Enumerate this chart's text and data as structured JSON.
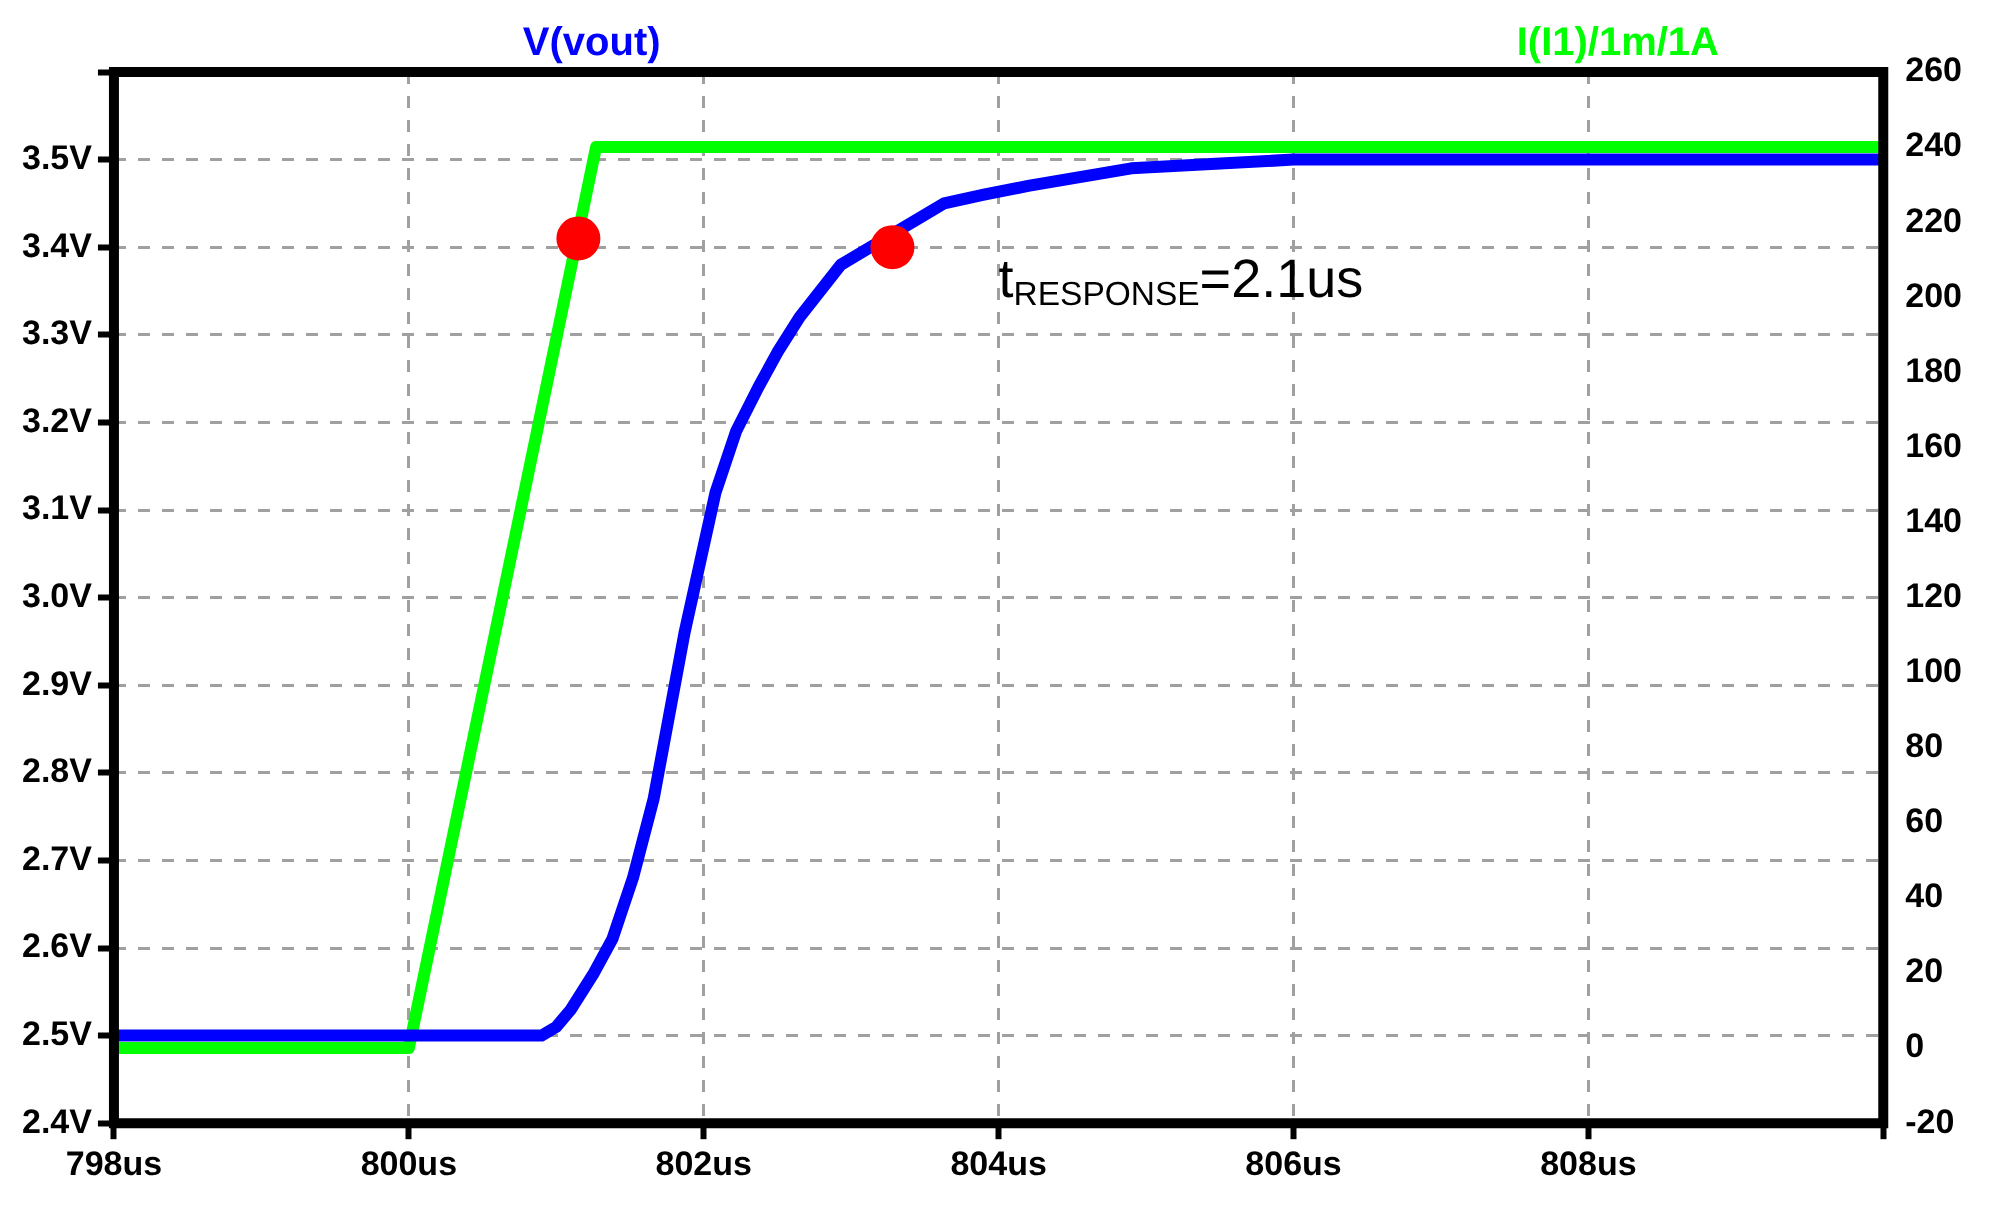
{
  "chart_data": {
    "type": "line",
    "xlim": [
      798,
      810
    ],
    "xticks": [
      {
        "value": 798,
        "label": "798us"
      },
      {
        "value": 800,
        "label": "800us"
      },
      {
        "value": 802,
        "label": "802us"
      },
      {
        "value": 804,
        "label": "804us"
      },
      {
        "value": 806,
        "label": "806us"
      },
      {
        "value": 808,
        "label": "808us"
      },
      {
        "value": 810,
        "label": null
      }
    ],
    "ylim": [
      2.4,
      3.6
    ],
    "yticks": [
      {
        "value": 2.4,
        "label": "2.4V"
      },
      {
        "value": 2.5,
        "label": "2.5V"
      },
      {
        "value": 2.6,
        "label": "2.6V"
      },
      {
        "value": 2.7,
        "label": "2.7V"
      },
      {
        "value": 2.8,
        "label": "2.8V"
      },
      {
        "value": 2.9,
        "label": "2.9V"
      },
      {
        "value": 3.0,
        "label": "3.0V"
      },
      {
        "value": 3.1,
        "label": "3.1V"
      },
      {
        "value": 3.2,
        "label": "3.2V"
      },
      {
        "value": 3.3,
        "label": "3.3V"
      },
      {
        "value": 3.4,
        "label": "3.4V"
      },
      {
        "value": 3.5,
        "label": "3.5V"
      },
      {
        "value": 3.6,
        "label": null
      }
    ],
    "y2lim": [
      -20,
      260
    ],
    "y2ticks": [
      -20,
      0,
      20,
      40,
      60,
      80,
      100,
      120,
      140,
      160,
      180,
      200,
      220,
      240,
      260
    ],
    "grid": true,
    "legend": "top",
    "marker": "none",
    "line_style": "solid",
    "annotations": [
      "t$_{RESPONSE}$=2.1us"
    ],
    "series": [
      {
        "name": "V(vout)",
        "color": "#0000ff",
        "axis": "y",
        "x": [
          798,
          800.9,
          801.0,
          801.1,
          801.25,
          801.38,
          801.52,
          801.66,
          801.87,
          802.08,
          802.22,
          802.37,
          802.5,
          802.65,
          802.93,
          803.63,
          803.9,
          804.2,
          804.9,
          806.0,
          810
        ],
        "values": [
          2.5,
          2.5,
          2.51,
          2.53,
          2.57,
          2.61,
          2.68,
          2.77,
          2.96,
          3.12,
          3.19,
          3.24,
          3.28,
          3.32,
          3.38,
          3.45,
          3.46,
          3.47,
          3.49,
          3.5,
          3.5
        ]
      },
      {
        "name": "I(I1)/1m/1A",
        "color": "#00ff00",
        "axis": "y2",
        "x": [
          798,
          800,
          801.27,
          810
        ],
        "values": [
          0,
          0,
          240,
          240
        ]
      },
      {
        "color": "#ff0000",
        "type": "scatter",
        "axis": "y",
        "marker": "circle",
        "x": [
          801.15,
          803.28
        ],
        "values": [
          3.41,
          3.4
        ]
      }
    ]
  }
}
